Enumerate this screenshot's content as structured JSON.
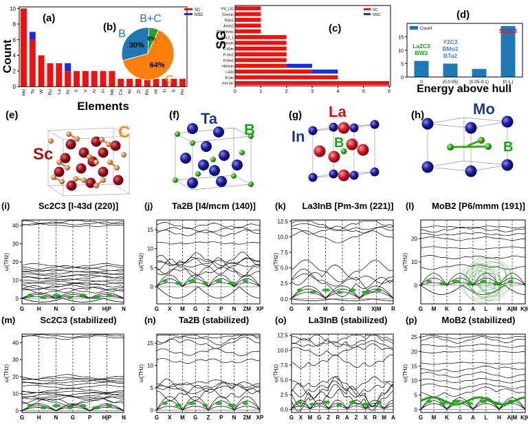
{
  "colors": {
    "sc": "#ee1111",
    "nsc": "#1530dd",
    "count": "#1f77b4",
    "green": "#16a316",
    "orange": "#ff7f0e",
    "pie_blue": "#1f77b4",
    "pie_green": "#2ca02c"
  },
  "chart_data": [
    {
      "panel": "(a)",
      "type": "bar",
      "xlabel": "Elements",
      "ylabel": "Count",
      "categories": [
        "Mo",
        "Ta",
        "W",
        "Ru",
        "La",
        "Sc",
        "Y",
        "V",
        "Al",
        "In",
        "Nb",
        "Ca",
        "Ni",
        "Zr",
        "Rh",
        "Hf",
        "Ti",
        "S",
        "Pd"
      ],
      "series": [
        {
          "name": "SC",
          "values": [
            10,
            6,
            4,
            3,
            3,
            2,
            2,
            2,
            2,
            2,
            2,
            1,
            1,
            1,
            1,
            1,
            1,
            1,
            1
          ]
        },
        {
          "name": "NSC",
          "values": [
            0,
            1,
            0,
            0,
            0,
            1,
            0,
            0,
            0,
            0,
            0,
            0,
            0,
            0,
            0,
            0,
            0,
            0,
            0
          ]
        }
      ],
      "yticks": [
        0,
        2,
        4,
        6,
        8,
        10
      ],
      "ylim": [
        0,
        10.2
      ]
    },
    {
      "panel": "(b)",
      "type": "pie",
      "labels": [
        "C",
        "B",
        "B+C"
      ],
      "values": [
        64,
        30,
        6
      ],
      "pct_labels": [
        "64%",
        "30%",
        "6%"
      ],
      "legend": [
        "SC",
        "NSC"
      ]
    },
    {
      "panel": "(c)",
      "type": "bar",
      "orientation": "horizontal",
      "ylabel": "SG",
      "categories": [
        "P4_132",
        "Cmmm",
        "P3m1",
        "Amm2",
        "P6_3/mmc",
        "Pmc2_1",
        "P6/mmm",
        "F-43m",
        "P-3m1",
        "P-6m2",
        "I4/mcm",
        "I-43d",
        "R-3m",
        "Pm-3m"
      ],
      "series": [
        {
          "name": "SC",
          "values": [
            1,
            1,
            1,
            1,
            1,
            2,
            2,
            2,
            2,
            2,
            2,
            3,
            4,
            6
          ]
        },
        {
          "name": "NSC",
          "values": [
            0,
            0,
            0,
            0,
            0,
            0,
            0,
            0,
            0,
            0,
            1,
            1,
            0,
            0
          ]
        }
      ],
      "xticks": [
        0,
        1,
        2,
        3,
        4,
        5,
        6
      ],
      "xlim": [
        0,
        6.05
      ]
    },
    {
      "panel": "(d)",
      "type": "bar",
      "xlabel": "Energy above hull",
      "legend": [
        "Count"
      ],
      "categories": [
        "0",
        "(0,0.05)",
        "[0.05-0.1)",
        "[0.1,)"
      ],
      "values": [
        6,
        5,
        3,
        19
      ],
      "yticks": [
        0,
        5,
        10,
        15
      ],
      "ylim": [
        0,
        20
      ],
      "annotations": [
        {
          "lines": [
            "La2C3",
            "BW2"
          ],
          "color": "#16a316"
        },
        {
          "lines": [
            "Y2C3",
            "BMo2",
            "BTa2"
          ],
          "color": "#4a7fd0"
        },
        {
          "text": "Sc2C3",
          "color": "#ee1111"
        }
      ]
    },
    {
      "panel": "(i)",
      "type": "line",
      "title": "Sc2C3 [I-43d (220)]",
      "ylabel": "ω(THz)",
      "yticks": [
        0,
        10,
        20,
        30,
        40
      ],
      "ylim": [
        -3,
        43
      ],
      "xticks": [
        "G",
        "H",
        "N",
        "G",
        "P",
        "H|P",
        "N"
      ]
    },
    {
      "panel": "(j)",
      "type": "line",
      "title": "Ta2B [I4/mcm (140)]",
      "ylabel": "ω(THz)",
      "yticks": [
        0,
        5,
        10,
        15
      ],
      "ylim": [
        -4.5,
        17.5
      ],
      "xticks": [
        "G",
        "X",
        "M",
        "G",
        "Z",
        "P",
        "N",
        "ZM",
        "XP"
      ]
    },
    {
      "panel": "(k)",
      "type": "line",
      "title": "La3InB [Pm-3m (221)]",
      "ylabel": "ω(THz)",
      "yticks": [
        0.0,
        2.5,
        5.0,
        7.5,
        10.0,
        12.5
      ],
      "ylim": [
        -0.8,
        12.7
      ],
      "xticks": [
        "G",
        "X",
        "M",
        "G",
        "R",
        "X|M",
        "R"
      ]
    },
    {
      "panel": "(l)",
      "type": "line",
      "title": "MoB2 [P6/mmm (191)]",
      "ylabel": "ω(THz)",
      "yticks": [
        0,
        10,
        20
      ],
      "ylim": [
        -8,
        28
      ],
      "xticks": [
        "G",
        "M",
        "K",
        "G",
        "A",
        "L",
        "H",
        "A|M",
        "K|H"
      ]
    },
    {
      "panel": "(m)",
      "type": "line",
      "title": "Sc2C3 (stabilized)",
      "ylabel": "ω(THz)",
      "yticks": [
        0,
        10,
        20,
        30,
        40
      ],
      "ylim": [
        -1,
        45
      ],
      "xticks": [
        "G",
        "H",
        "N",
        "G",
        "P",
        "H|P",
        "N"
      ]
    },
    {
      "panel": "(n)",
      "type": "line",
      "title": "Ta2B (stabilized)",
      "ylabel": "ω(THz)",
      "yticks": [
        0,
        5,
        10,
        15
      ],
      "ylim": [
        -0.5,
        17
      ],
      "xticks": [
        "G",
        "X",
        "M",
        "G",
        "Z",
        "P",
        "N",
        "ZM",
        "XP"
      ]
    },
    {
      "panel": "(o)",
      "type": "line",
      "title": "La3InB (stabilized)",
      "ylabel": "ω(THz)",
      "yticks": [
        0.0,
        2.5,
        5.0,
        7.5,
        10.0,
        12.5
      ],
      "ylim": [
        -0.5,
        12.7
      ],
      "xticks": [
        "G",
        "X",
        "M",
        "G",
        "Z",
        "R",
        "A",
        "Z",
        "X",
        "R",
        "M",
        "A"
      ]
    },
    {
      "panel": "(p)",
      "type": "line",
      "title": "MoB2 (stabilized)",
      "ylabel": "ω(THz)",
      "yticks": [
        0,
        5,
        10,
        15,
        20,
        25
      ],
      "ylim": [
        -1,
        26
      ],
      "xticks": [
        "G",
        "M",
        "K",
        "G",
        "A",
        "L",
        "H",
        "A|M",
        "K|H"
      ]
    }
  ],
  "structures": [
    {
      "panel": "(e)",
      "atoms": [
        "Sc",
        "C"
      ]
    },
    {
      "panel": "(f)",
      "atoms": [
        "Ta",
        "B"
      ]
    },
    {
      "panel": "(g)",
      "atoms": [
        "La",
        "In",
        "B"
      ]
    },
    {
      "panel": "(h)",
      "atoms": [
        "Mo",
        "B"
      ]
    }
  ]
}
